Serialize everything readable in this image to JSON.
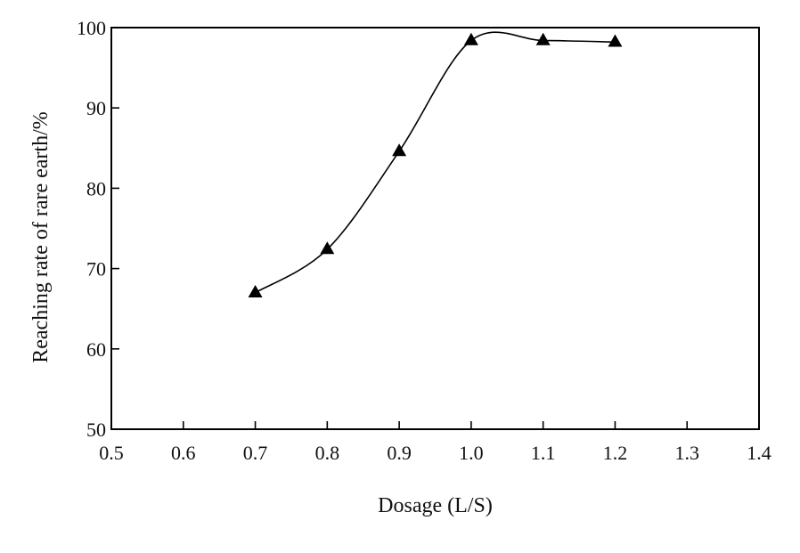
{
  "chart_data": {
    "type": "scatter",
    "title": "",
    "xlabel": "Dosage (L/S)",
    "ylabel": "Reaching rate of rare earth/%",
    "xlim": [
      0.5,
      1.4
    ],
    "ylim": [
      50,
      100
    ],
    "x_ticks": [
      "0.5",
      "0.6",
      "0.7",
      "0.8",
      "0.9",
      "1.0",
      "1.1",
      "1.2",
      "1.3",
      "1.4"
    ],
    "y_ticks": [
      "50",
      "60",
      "70",
      "80",
      "90",
      "100"
    ],
    "grid": false,
    "legend": "none",
    "marker": "triangle",
    "line": "smooth",
    "series": [
      {
        "x": [
          0.7,
          0.8,
          0.9,
          1.0,
          1.1,
          1.2
        ],
        "y": [
          67.0,
          72.4,
          84.6,
          98.4,
          98.4,
          98.2
        ]
      }
    ]
  },
  "colors": {
    "line": "#000000",
    "marker": "#000000",
    "axis": "#000000"
  }
}
